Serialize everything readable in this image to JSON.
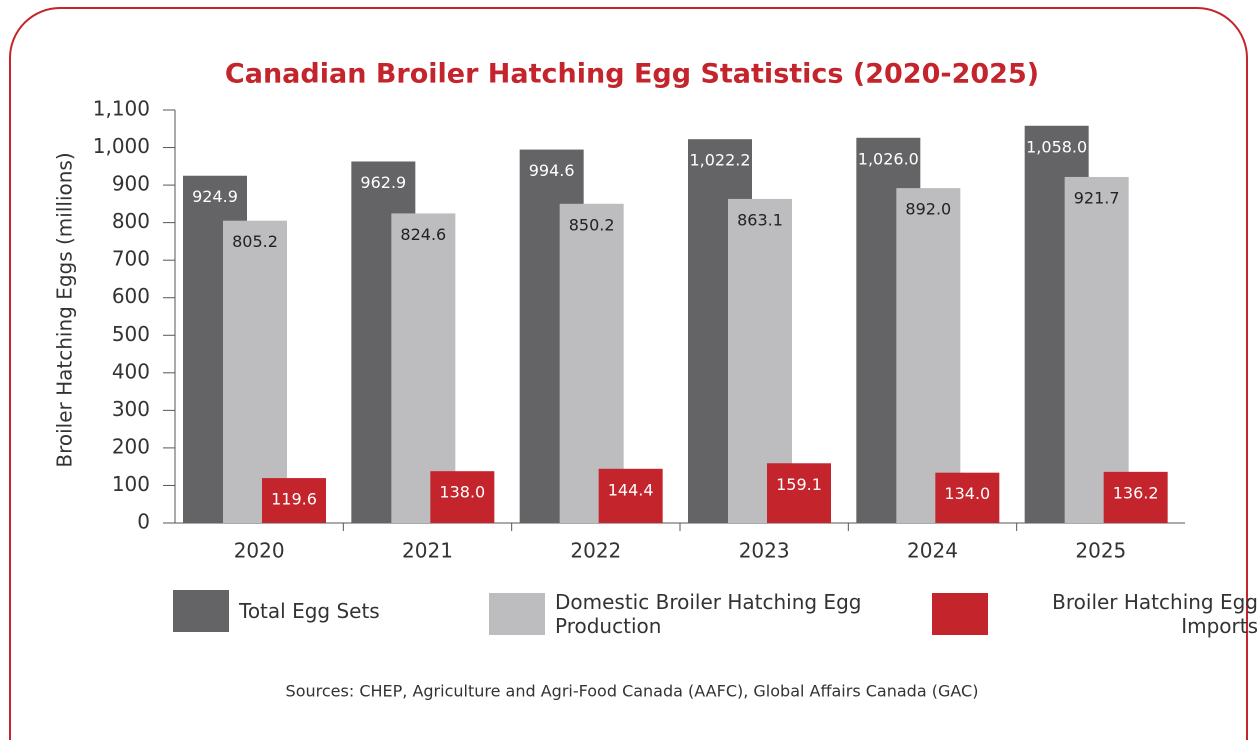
{
  "chart_data": {
    "type": "bar",
    "title": "Canadian Broiler Hatching Egg Statistics (2020-2025)",
    "y_label": "Broiler Hatching Eggs (millions)",
    "source": "Sources: CHEP, Agriculture and Agri-Food Canada (AAFC), Global Affairs Canada (GAC)",
    "categories": [
      "2020",
      "2021",
      "2022",
      "2023",
      "2024",
      "2025"
    ],
    "series": [
      {
        "name": "Total Egg Sets",
        "color": "#646466",
        "label_color": "#ffffff",
        "values": [
          924.9,
          962.9,
          994.6,
          1022.2,
          1026.0,
          1058.0
        ],
        "value_labels": [
          "924.9",
          "962.9",
          "994.6",
          "1,022.2",
          "1,026.0",
          "1,058.0"
        ]
      },
      {
        "name": "Domestic Broiler Hatching Egg Production",
        "color": "#bdbdbf",
        "label_color": "#222222",
        "values": [
          805.2,
          824.6,
          850.2,
          863.1,
          892.0,
          921.7
        ],
        "value_labels": [
          "805.2",
          "824.6",
          "850.2",
          "863.1",
          "892.0",
          "921.7"
        ]
      },
      {
        "name": "Broiler Hatching Egg Imports",
        "color": "#c4242b",
        "label_color": "#ffffff",
        "values": [
          119.6,
          138.0,
          144.4,
          159.1,
          134.0,
          136.2
        ],
        "value_labels": [
          "119.6",
          "138.0",
          "144.4",
          "159.1",
          "134.0",
          "136.2"
        ]
      }
    ],
    "ylim": [
      0,
      1100
    ],
    "yticks": [
      0,
      100,
      200,
      300,
      400,
      500,
      600,
      700,
      800,
      900,
      {
        "value": 1000,
        "label": "1,000"
      },
      {
        "value": 1100,
        "label": "1,100"
      }
    ],
    "grid": false
  }
}
